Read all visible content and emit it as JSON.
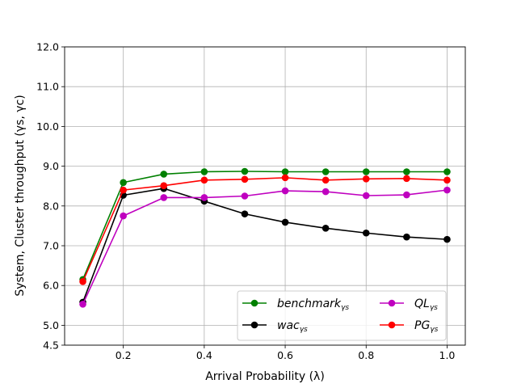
{
  "chart_data": {
    "type": "line",
    "title": "",
    "xlabel": "Arrival Probability (λ)",
    "ylabel": "System, Cluster throughput (γs, γc)",
    "xlim": [
      0.055,
      1.045
    ],
    "ylim": [
      4.5,
      12.0
    ],
    "xticks": [
      0.2,
      0.4,
      0.6,
      0.8,
      1.0
    ],
    "xtick_labels": [
      "0.2",
      "0.4",
      "0.6",
      "0.8",
      "1.0"
    ],
    "yticks": [
      4.5,
      5.0,
      6.0,
      7.0,
      8.0,
      9.0,
      10.0,
      11.0,
      12.0
    ],
    "ytick_labels": [
      "4.5",
      "5.0",
      "6.0",
      "7.0",
      "8.0",
      "9.0",
      "10.0",
      "11.0",
      "12.0"
    ],
    "grid": true,
    "legend_position": "lower-right",
    "x": [
      0.1,
      0.2,
      0.3,
      0.4,
      0.5,
      0.6,
      0.7,
      0.8,
      0.9,
      1.0
    ],
    "series": [
      {
        "name": "benchmark",
        "subscript": "γs",
        "color": "#008000",
        "values": [
          6.15,
          8.59,
          8.8,
          8.86,
          8.87,
          8.86,
          8.86,
          8.86,
          8.86,
          8.86
        ]
      },
      {
        "name": "wac",
        "subscript": "γs",
        "color": "#000000",
        "values": [
          5.58,
          8.27,
          8.44,
          8.12,
          7.8,
          7.59,
          7.44,
          7.32,
          7.22,
          7.16
        ]
      },
      {
        "name": "QL",
        "subscript": "γs",
        "color": "#bf00bf",
        "values": [
          5.53,
          7.75,
          8.21,
          8.21,
          8.25,
          8.38,
          8.36,
          8.26,
          8.28,
          8.4
        ]
      },
      {
        "name": "PG",
        "subscript": "γs",
        "color": "#ff0000",
        "values": [
          6.1,
          8.4,
          8.51,
          8.65,
          8.67,
          8.71,
          8.65,
          8.68,
          8.69,
          8.65
        ]
      }
    ]
  }
}
